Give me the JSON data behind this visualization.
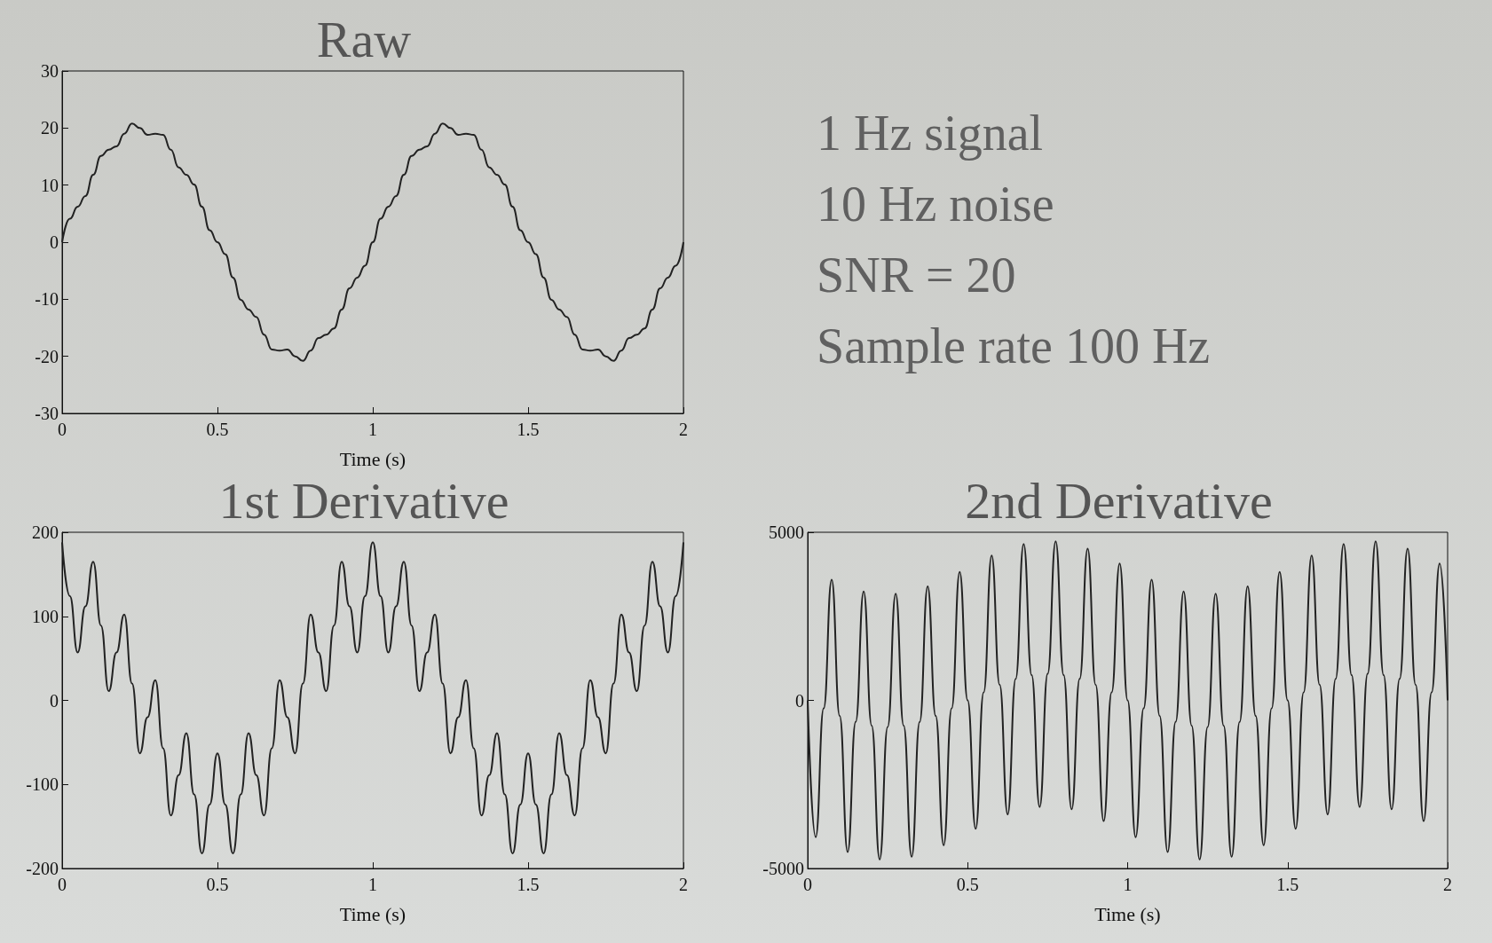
{
  "chart_data": [
    {
      "type": "line",
      "title": "Raw",
      "xlabel": "Time (s)",
      "marker": "none",
      "xlim": [
        0,
        2
      ],
      "xticks": [
        0,
        0.5,
        1,
        1.5,
        2
      ],
      "ylim": [
        -30,
        30
      ],
      "yticks": [
        -30,
        -20,
        -10,
        0,
        10,
        20,
        30
      ],
      "x": [
        0,
        0.025,
        0.05,
        0.075,
        0.1,
        0.125,
        0.15,
        0.175,
        0.2,
        0.225,
        0.25,
        0.275,
        0.3,
        0.325,
        0.35,
        0.375,
        0.4,
        0.425,
        0.45,
        0.475,
        0.5,
        0.525,
        0.55,
        0.575,
        0.6,
        0.625,
        0.65,
        0.675,
        0.7,
        0.725,
        0.75,
        0.775,
        0.8,
        0.825,
        0.85,
        0.875,
        0.9,
        0.925,
        0.95,
        0.975,
        1,
        1.025,
        1.05,
        1.075,
        1.1,
        1.125,
        1.15,
        1.175,
        1.2,
        1.225,
        1.25,
        1.275,
        1.3,
        1.325,
        1.35,
        1.375,
        1.4,
        1.425,
        1.45,
        1.475,
        1.5,
        1.525,
        1.55,
        1.575,
        1.6,
        1.625,
        1.65,
        1.675,
        1.7,
        1.725,
        1.75,
        1.775,
        1.8,
        1.825,
        1.85,
        1.875,
        1.9,
        1.925,
        1.95,
        1.975,
        2
      ],
      "series": [
        {
          "color": "#222222",
          "values": [
            0,
            4.1,
            6.2,
            8.1,
            11.8,
            15.1,
            16.2,
            16.8,
            19.0,
            20.8,
            20,
            18.8,
            19.0,
            18.8,
            16.2,
            13.1,
            11.8,
            10.1,
            6.2,
            2.1,
            0,
            -2.1,
            -6.2,
            -10.1,
            -11.8,
            -13.1,
            -16.2,
            -18.8,
            -19.0,
            -18.8,
            -20,
            -20.8,
            -19.0,
            -16.8,
            -16.2,
            -15.1,
            -11.8,
            -8.1,
            -6.2,
            -4.1,
            0,
            4.1,
            6.2,
            8.1,
            11.8,
            15.1,
            16.2,
            16.8,
            19.0,
            20.8,
            20,
            18.8,
            19.0,
            18.8,
            16.2,
            13.1,
            11.8,
            10.1,
            6.2,
            2.1,
            0,
            -2.1,
            -6.2,
            -10.1,
            -11.8,
            -13.1,
            -16.2,
            -18.8,
            -19.0,
            -18.8,
            -20,
            -20.8,
            -19.0,
            -16.8,
            -16.2,
            -15.1,
            -11.8,
            -8.1,
            -6.2,
            -4.1,
            0
          ]
        }
      ]
    },
    {
      "type": "other",
      "annotations": [
        "1 Hz signal",
        "10 Hz noise",
        "SNR = 20",
        "Sample rate 100 Hz"
      ]
    },
    {
      "type": "line",
      "title": "1st Derivative",
      "xlabel": "Time (s)",
      "marker": "none",
      "xlim": [
        0,
        2
      ],
      "xticks": [
        0,
        0.5,
        1,
        1.5,
        2
      ],
      "ylim": [
        -200,
        200
      ],
      "yticks": [
        -200,
        -100,
        0,
        100,
        200
      ],
      "x": [
        0,
        0.025,
        0.05,
        0.075,
        0.1,
        0.125,
        0.15,
        0.175,
        0.2,
        0.225,
        0.25,
        0.275,
        0.3,
        0.325,
        0.35,
        0.375,
        0.4,
        0.425,
        0.45,
        0.475,
        0.5,
        0.525,
        0.55,
        0.575,
        0.6,
        0.625,
        0.65,
        0.675,
        0.7,
        0.725,
        0.75,
        0.775,
        0.8,
        0.825,
        0.85,
        0.875,
        0.9,
        0.925,
        0.95,
        0.975,
        1,
        1.025,
        1.05,
        1.075,
        1.1,
        1.125,
        1.15,
        1.175,
        1.2,
        1.225,
        1.25,
        1.275,
        1.3,
        1.325,
        1.35,
        1.375,
        1.4,
        1.425,
        1.45,
        1.475,
        1.5,
        1.525,
        1.55,
        1.575,
        1.6,
        1.625,
        1.65,
        1.675,
        1.7,
        1.725,
        1.75,
        1.775,
        1.8,
        1.825,
        1.85,
        1.875,
        1.9,
        1.925,
        1.95,
        1.975,
        2
      ],
      "series": [
        {
          "color": "#222222",
          "values": [
            188,
            124,
            57,
            112,
            165,
            89,
            11,
            57,
            102,
            20,
            -63,
            -20,
            24,
            -57,
            -137,
            -89,
            -39,
            -112,
            -182,
            -124,
            -63,
            -124,
            -182,
            -112,
            -39,
            -89,
            -137,
            -57,
            24,
            -20,
            -63,
            20,
            102,
            57,
            11,
            89,
            165,
            112,
            57,
            124,
            188,
            124,
            57,
            112,
            165,
            89,
            11,
            57,
            102,
            20,
            -63,
            -20,
            24,
            -57,
            -137,
            -89,
            -39,
            -112,
            -182,
            -124,
            -63,
            -124,
            -182,
            -112,
            -39,
            -89,
            -137,
            -57,
            24,
            -20,
            -63,
            20,
            102,
            57,
            11,
            89,
            165,
            112,
            57,
            124,
            188
          ]
        }
      ]
    },
    {
      "type": "line",
      "title": "2nd Derivative",
      "xlabel": "Time (s)",
      "marker": "none",
      "xlim": [
        0,
        2
      ],
      "xticks": [
        0,
        0.5,
        1,
        1.5,
        2
      ],
      "ylim": [
        -5000,
        5000
      ],
      "yticks": [
        -5000,
        0,
        5000
      ],
      "x": [
        0,
        0.025,
        0.05,
        0.075,
        0.1,
        0.125,
        0.15,
        0.175,
        0.2,
        0.225,
        0.25,
        0.275,
        0.3,
        0.325,
        0.35,
        0.375,
        0.4,
        0.425,
        0.45,
        0.475,
        0.5,
        0.525,
        0.55,
        0.575,
        0.6,
        0.625,
        0.65,
        0.675,
        0.7,
        0.725,
        0.75,
        0.775,
        0.8,
        0.825,
        0.85,
        0.875,
        0.9,
        0.925,
        0.95,
        0.975,
        1,
        1.025,
        1.05,
        1.075,
        1.1,
        1.125,
        1.15,
        1.175,
        1.2,
        1.225,
        1.25,
        1.275,
        1.3,
        1.325,
        1.35,
        1.375,
        1.4,
        1.425,
        1.45,
        1.475,
        1.5,
        1.525,
        1.55,
        1.575,
        1.6,
        1.625,
        1.65,
        1.675,
        1.7,
        1.725,
        1.75,
        1.775,
        1.8,
        1.825,
        1.85,
        1.875,
        1.9,
        1.925,
        1.95,
        1.975,
        2
      ],
      "series": [
        {
          "color": "#222222",
          "values": [
            0,
            -4070,
            -240,
            3590,
            -460,
            -4510,
            -640,
            3240,
            -750,
            -4730,
            -790,
            3170,
            -750,
            -4650,
            -640,
            3390,
            -460,
            -4310,
            -240,
            3820,
            0,
            -3820,
            240,
            4310,
            460,
            -3390,
            640,
            4650,
            750,
            -3170,
            790,
            4730,
            750,
            -3240,
            640,
            4510,
            460,
            -3590,
            240,
            4070,
            0,
            -4070,
            -240,
            3590,
            -460,
            -4510,
            -640,
            3240,
            -750,
            -4730,
            -790,
            3170,
            -750,
            -4650,
            -640,
            3390,
            -460,
            -4310,
            -240,
            3820,
            0,
            -3820,
            240,
            4310,
            460,
            -3390,
            640,
            4650,
            750,
            -3170,
            790,
            4730,
            750,
            -3240,
            640,
            4510,
            460,
            -3590,
            240,
            4070,
            0
          ]
        }
      ]
    }
  ]
}
